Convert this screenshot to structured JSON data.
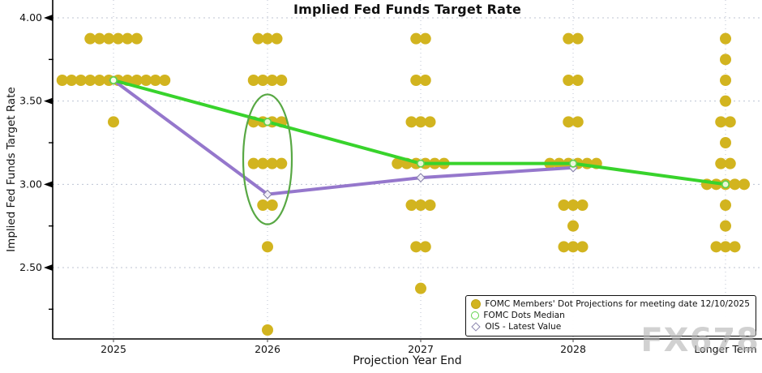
{
  "title": "Implied Fed Funds Target Rate",
  "axes": {
    "x_label": "Projection Year End",
    "y_label": "Implied Fed Funds Target Rate",
    "x_tick_labels": [
      "2025",
      "2026",
      "2027",
      "2028",
      "Longer Term"
    ],
    "y_tick_labels": [
      "4.00",
      "3.50",
      "3.00",
      "2.50"
    ]
  },
  "watermark": "FX678",
  "legend": {
    "position": "lower right",
    "items": [
      {
        "marker": "filled-circle",
        "color": "#d2b41f",
        "label": "FOMC Members' Dot Projections for meeting date 12/10/2025"
      },
      {
        "marker": "open-circle",
        "color": "#60d24b",
        "label": "FOMC Dots Median"
      },
      {
        "marker": "open-diamond",
        "color": "#8b85ad",
        "label": "OIS - Latest Value"
      }
    ]
  },
  "chart_data": {
    "type": "scatter",
    "title": "Implied Fed Funds Target Rate",
    "xlabel": "Projection Year End",
    "ylabel": "Implied Fed Funds Target Rate",
    "categories": [
      "2025",
      "2026",
      "2027",
      "2028",
      "Longer Term"
    ],
    "ylim": [
      2.07,
      4.11
    ],
    "y_major_ticks": [
      4.0,
      3.5,
      3.0,
      2.5
    ],
    "y_minor_ticks": [
      3.75,
      3.25,
      2.75,
      2.25
    ],
    "grid": true,
    "dot_color": "#d2b41f",
    "dots": [
      {
        "category": "2025",
        "rows": [
          {
            "rate": 3.875,
            "count": 6
          },
          {
            "rate": 3.625,
            "count": 12
          },
          {
            "rate": 3.375,
            "count": 1
          }
        ]
      },
      {
        "category": "2026",
        "rows": [
          {
            "rate": 3.875,
            "count": 3
          },
          {
            "rate": 3.625,
            "count": 4
          },
          {
            "rate": 3.375,
            "count": 4
          },
          {
            "rate": 3.125,
            "count": 4
          },
          {
            "rate": 2.875,
            "count": 2
          },
          {
            "rate": 2.625,
            "count": 1
          },
          {
            "rate": 2.125,
            "count": 1
          }
        ]
      },
      {
        "category": "2027",
        "rows": [
          {
            "rate": 3.875,
            "count": 2
          },
          {
            "rate": 3.625,
            "count": 2
          },
          {
            "rate": 3.375,
            "count": 3
          },
          {
            "rate": 3.125,
            "count": 6
          },
          {
            "rate": 2.875,
            "count": 3
          },
          {
            "rate": 2.625,
            "count": 2
          },
          {
            "rate": 2.375,
            "count": 1
          }
        ]
      },
      {
        "category": "2028",
        "rows": [
          {
            "rate": 3.875,
            "count": 2
          },
          {
            "rate": 3.625,
            "count": 2
          },
          {
            "rate": 3.375,
            "count": 2
          },
          {
            "rate": 3.125,
            "count": 6
          },
          {
            "rate": 2.875,
            "count": 3
          },
          {
            "rate": 2.75,
            "count": 1
          },
          {
            "rate": 2.625,
            "count": 3
          }
        ]
      },
      {
        "category": "Longer Term",
        "rows": [
          {
            "rate": 3.875,
            "count": 1
          },
          {
            "rate": 3.75,
            "count": 1
          },
          {
            "rate": 3.625,
            "count": 1
          },
          {
            "rate": 3.5,
            "count": 1
          },
          {
            "rate": 3.375,
            "count": 2
          },
          {
            "rate": 3.25,
            "count": 1
          },
          {
            "rate": 3.125,
            "count": 2
          },
          {
            "rate": 3.0,
            "count": 5
          },
          {
            "rate": 2.875,
            "count": 1
          },
          {
            "rate": 2.75,
            "count": 1
          },
          {
            "rate": 2.625,
            "count": 3
          }
        ]
      }
    ],
    "series": [
      {
        "name": "FOMC Dots Median",
        "color": "#38d32c",
        "marker": "open-circle",
        "values": [
          3.625,
          3.375,
          3.125,
          3.125,
          3.0
        ]
      },
      {
        "name": "OIS - Latest Value",
        "color": "#9577cc",
        "marker": "open-diamond",
        "values": [
          3.625,
          2.94,
          3.04,
          3.1,
          null
        ]
      }
    ],
    "annotation": {
      "type": "ellipse",
      "category": "2026",
      "center_rate": 3.15,
      "rate_halfspan": 0.39,
      "color": "#58a844"
    }
  }
}
